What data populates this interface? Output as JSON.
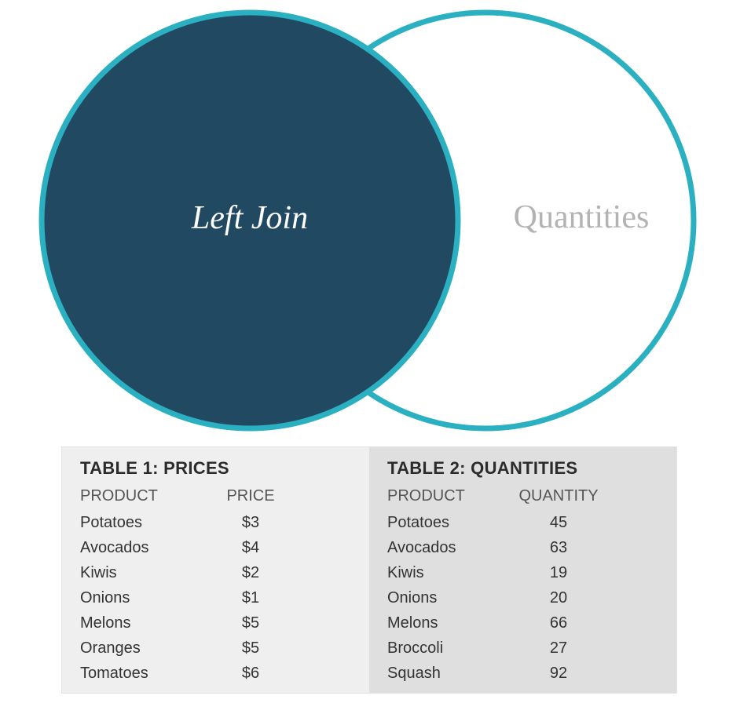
{
  "venn": {
    "left_label": "Left Join",
    "right_label": "Quantities",
    "colors": {
      "fill": "#214a62",
      "stroke": "#2ab0c0",
      "muted_text": "#b3b3b3"
    }
  },
  "table1": {
    "title": "TABLE 1: PRICES",
    "headers": [
      "PRODUCT",
      "PRICE"
    ],
    "rows": [
      [
        "Potatoes",
        "$3"
      ],
      [
        "Avocados",
        "$4"
      ],
      [
        "Kiwis",
        "$2"
      ],
      [
        "Onions",
        "$1"
      ],
      [
        "Melons",
        "$5"
      ],
      [
        "Oranges",
        "$5"
      ],
      [
        "Tomatoes",
        "$6"
      ]
    ]
  },
  "table2": {
    "title": "TABLE 2: QUANTITIES",
    "headers": [
      "PRODUCT",
      "QUANTITY"
    ],
    "rows": [
      [
        "Potatoes",
        "45"
      ],
      [
        "Avocados",
        "63"
      ],
      [
        "Kiwis",
        "19"
      ],
      [
        "Onions",
        "20"
      ],
      [
        "Melons",
        "66"
      ],
      [
        "Broccoli",
        "27"
      ],
      [
        "Squash",
        "92"
      ]
    ]
  }
}
